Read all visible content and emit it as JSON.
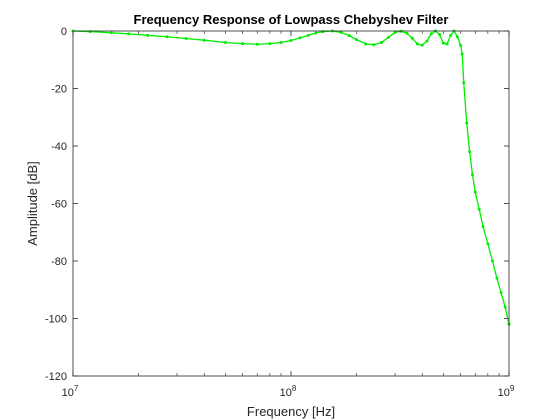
{
  "chart_data": {
    "type": "line",
    "title": "Frequency Response of Lowpass Chebyshev Filter",
    "xlabel": "Frequency [Hz]",
    "ylabel": "Amplitude [dB]",
    "xscale": "log",
    "xlim": [
      10000000,
      1000000000
    ],
    "ylim": [
      -120,
      0
    ],
    "x_ticks": [
      {
        "value": 10000000,
        "base": "10",
        "exp": "7"
      },
      {
        "value": 100000000,
        "base": "10",
        "exp": "8"
      },
      {
        "value": 1000000000,
        "base": "10",
        "exp": "9"
      }
    ],
    "y_ticks": [
      0,
      -20,
      -40,
      -60,
      -80,
      -100,
      -120
    ],
    "grid": false,
    "line_color": "#00ee00",
    "series": [
      {
        "x": [
          10000000,
          12000000,
          15000000,
          18000000,
          22000000,
          27000000,
          33000000,
          40000000,
          50000000,
          60000000,
          70000000,
          80000000,
          90000000,
          100000000,
          110000000,
          120000000,
          130000000,
          140000000,
          155000000,
          170000000,
          185000000,
          200000000,
          220000000,
          240000000,
          260000000,
          280000000,
          300000000,
          320000000,
          340000000,
          360000000,
          380000000,
          400000000,
          420000000,
          440000000,
          460000000,
          480000000,
          500000000,
          520000000,
          540000000,
          560000000,
          580000000,
          600000000,
          610000000,
          620000000,
          640000000,
          660000000,
          680000000,
          700000000,
          730000000,
          760000000,
          800000000,
          840000000,
          880000000,
          920000000,
          960000000,
          1000000000
        ],
        "y": [
          0,
          -0.2,
          -0.6,
          -1,
          -1.5,
          -2,
          -2.6,
          -3.2,
          -4,
          -4.4,
          -4.6,
          -4.4,
          -4,
          -3.3,
          -2.4,
          -1.5,
          -0.7,
          -0.2,
          0,
          -0.5,
          -1.6,
          -3,
          -4.5,
          -4.8,
          -4,
          -2.2,
          -0.5,
          -0.1,
          -0.8,
          -2.5,
          -4.5,
          -4.9,
          -3.5,
          -1,
          0,
          -1.2,
          -4.2,
          -4.5,
          -1.5,
          0,
          -2,
          -5,
          -8,
          -18,
          -32,
          -42,
          -50,
          -56,
          -62,
          -68,
          -74,
          -80,
          -86,
          -91,
          -96,
          -102
        ]
      }
    ]
  }
}
